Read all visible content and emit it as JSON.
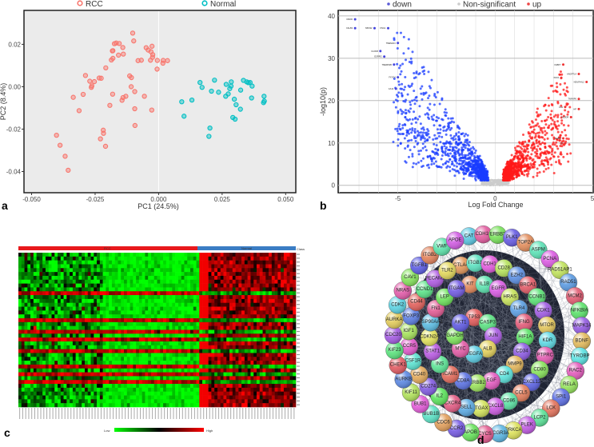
{
  "panel_labels": {
    "a": "a",
    "b": "b",
    "c": "c",
    "d": "d"
  },
  "colors": {
    "rcc": "#F8766D",
    "normal": "#00BFC4",
    "down": "#1a3cff",
    "up": "#ff1a1a",
    "ns": "#cccccc",
    "heat_low": "#00ff00",
    "heat_mid": "#000000",
    "heat_high": "#ff0000",
    "class_rcc": "#e8191c",
    "class_normal": "#3b7dc4"
  },
  "chart_data": [
    {
      "id": "pca",
      "type": "scatter",
      "title": "",
      "xlabel": "PC1 (24.5%)",
      "ylabel": "PC2 (8.4%)",
      "xlim": [
        -0.053,
        0.054
      ],
      "ylim": [
        -0.05,
        0.036
      ],
      "xticks": [
        "-0.050",
        "-0.025",
        "0.000",
        "0.025",
        "0.050"
      ],
      "xtick_values": [
        -0.05,
        -0.025,
        0,
        0.025,
        0.05
      ],
      "yticks": [
        "0.02",
        "0.00",
        "-0.02",
        "-0.04"
      ],
      "ytick_values": [
        0.02,
        0,
        -0.02,
        -0.04
      ],
      "legend_placement": "top",
      "series": [
        {
          "name": "RCC",
          "points": [
            [
              -0.0102,
              0.0253
            ],
            [
              -0.0098,
              0.0216
            ],
            [
              -0.0174,
              0.0203
            ],
            [
              -0.0167,
              0.0206
            ],
            [
              -0.0155,
              0.0204
            ],
            [
              -0.0141,
              0.0185
            ],
            [
              -0.0182,
              0.0169
            ],
            [
              -0.018,
              0.017
            ],
            [
              -0.0139,
              0.0154
            ],
            [
              -0.0158,
              0.0149
            ],
            [
              -0.018,
              0.0134
            ],
            [
              -0.0186,
              0.0126
            ],
            [
              -0.0208,
              0.0089
            ],
            [
              -0.0049,
              0.0184
            ],
            [
              -0.0041,
              0.0173
            ],
            [
              -0.0026,
              0.0191
            ],
            [
              -0.003,
              0.0165
            ],
            [
              -0.0023,
              0.0151
            ],
            [
              -0.0024,
              0.0139
            ],
            [
              -0.0032,
              0.0125
            ],
            [
              -0.0068,
              0.0125
            ],
            [
              -0.0081,
              0.0123
            ],
            [
              -0.0005,
              0.0124
            ],
            [
              0.0018,
              0.0124
            ],
            [
              0.0017,
              0.0111
            ],
            [
              0.0035,
              0.0123
            ],
            [
              -0.0006,
              0.0083
            ],
            [
              -0.0288,
              0.0053
            ],
            [
              -0.0271,
              0.0026
            ],
            [
              -0.0253,
              0.0024
            ],
            [
              -0.0234,
              0.0041
            ],
            [
              -0.0226,
              0.004
            ],
            [
              -0.0263,
              0.0004
            ],
            [
              -0.0265,
              -0.0003
            ],
            [
              -0.0114,
              0.0051
            ],
            [
              -0.0107,
              0.0043
            ],
            [
              -0.0108,
              0.0
            ],
            [
              -0.0094,
              -0.0023
            ],
            [
              -0.0297,
              -0.0036
            ],
            [
              -0.0336,
              -0.005
            ],
            [
              -0.0181,
              -0.0035
            ],
            [
              -0.0129,
              -0.0045
            ],
            [
              -0.014,
              -0.0051
            ],
            [
              -0.0144,
              -0.0064
            ],
            [
              -0.0056,
              -0.0045
            ],
            [
              -0.0313,
              -0.0113
            ],
            [
              -0.0192,
              -0.0088
            ],
            [
              -0.0094,
              -0.0104
            ],
            [
              -0.0027,
              -0.011
            ],
            [
              -0.0093,
              -0.0183
            ],
            [
              -0.0218,
              -0.0205
            ],
            [
              -0.0217,
              -0.022
            ],
            [
              -0.0229,
              -0.0246
            ],
            [
              -0.0209,
              -0.0281
            ],
            [
              -0.0402,
              -0.0229
            ],
            [
              -0.0388,
              -0.0276
            ],
            [
              -0.0368,
              -0.0328
            ],
            [
              -0.0356,
              -0.0394
            ]
          ]
        },
        {
          "name": "Normal",
          "points": [
            [
              0.0163,
              0.002
            ],
            [
              0.0171,
              -0.0003
            ],
            [
              0.022,
              0.0031
            ],
            [
              0.0208,
              -0.0021
            ],
            [
              0.0236,
              -0.0026
            ],
            [
              0.0266,
              0.0011
            ],
            [
              0.0286,
              0.0023
            ],
            [
              0.0285,
              0.0003
            ],
            [
              0.028,
              -0.0009
            ],
            [
              0.0274,
              -0.0034
            ],
            [
              0.0264,
              -0.0045
            ],
            [
              0.0298,
              -0.0059
            ],
            [
              0.0305,
              -0.0085
            ],
            [
              0.0323,
              -0.0016
            ],
            [
              0.0322,
              -0.0106
            ],
            [
              0.0334,
              0.003
            ],
            [
              0.0347,
              0.0023
            ],
            [
              0.0353,
              0.0019
            ],
            [
              0.036,
              0.002
            ],
            [
              0.0368,
              0.0003
            ],
            [
              0.0366,
              -0.0053
            ],
            [
              0.0415,
              -0.0045
            ],
            [
              0.0416,
              -0.0068
            ],
            [
              0.0413,
              -0.0075
            ],
            [
              0.0292,
              -0.0145
            ],
            [
              0.0301,
              -0.0153
            ],
            [
              0.0091,
              -0.0071
            ],
            [
              0.0131,
              -0.0063
            ],
            [
              0.01,
              -0.0139
            ],
            [
              0.0202,
              -0.0195
            ],
            [
              0.0198,
              -0.0234
            ]
          ]
        }
      ]
    },
    {
      "id": "volcano",
      "type": "scatter",
      "xlabel": "Log Fold Change",
      "ylabel": "-log10(p)",
      "xlim": [
        -8.07,
        5.04
      ],
      "ylim": [
        -1.75,
        41.3
      ],
      "xticks": [
        "-5",
        "0",
        "5"
      ],
      "xtick_values": [
        -5,
        0,
        5
      ],
      "yticks": [
        "0",
        "10",
        "20",
        "30",
        "40"
      ],
      "ytick_values": [
        0,
        10,
        20,
        30,
        40
      ],
      "legend_placement": "top",
      "legend": [
        "down",
        "Non-significant",
        "up"
      ],
      "generated_counts": {
        "down": 900,
        "up": 900,
        "ns": 200
      },
      "labeled_genes": [
        {
          "gene": "UMOD",
          "x": -7.2,
          "y": 39.2,
          "group": "down"
        },
        {
          "gene": "CALB1",
          "x": -7.2,
          "y": 37.1,
          "group": "down"
        },
        {
          "gene": "NPHS2",
          "x": -6.2,
          "y": 37.1,
          "group": "down"
        },
        {
          "gene": "KNG1",
          "x": -5.5,
          "y": 37.1,
          "group": "down"
        },
        {
          "gene": "TMEM213",
          "x": -5.0,
          "y": 33.6,
          "group": "down"
        },
        {
          "gene": "CLDN8",
          "x": -5.9,
          "y": 31.7,
          "group": "down"
        },
        {
          "gene": "ESRRG",
          "x": -5.7,
          "y": 30.4,
          "group": "down"
        },
        {
          "gene": "TMEM52B",
          "x": -5.2,
          "y": 28.5,
          "group": "down"
        },
        {
          "gene": "FXYD4",
          "x": -5.0,
          "y": 25.5,
          "group": "down"
        },
        {
          "gene": "CA12",
          "x": -5.1,
          "y": 22.8,
          "group": "down"
        },
        {
          "gene": "FABP7",
          "x": 3.5,
          "y": 28.5,
          "group": "up"
        },
        {
          "gene": "ANGPTL4",
          "x": 4.3,
          "y": 26.3,
          "group": "up"
        },
        {
          "gene": "PAX2",
          "x": 3.4,
          "y": 25.4,
          "group": "up"
        },
        {
          "gene": "NDUFA4L2",
          "x": 4.7,
          "y": 24.4,
          "group": "up"
        },
        {
          "gene": "TNFAIP6",
          "x": 4.3,
          "y": 20.4,
          "group": "up"
        },
        {
          "gene": "CA9",
          "x": 3.6,
          "y": 18.5,
          "group": "up"
        },
        {
          "gene": "HP",
          "x": 4.3,
          "y": 18.0,
          "group": "up"
        },
        {
          "gene": "PCDDR",
          "x": 3.9,
          "y": 16.1,
          "group": "up"
        },
        {
          "gene": "INHBA",
          "x": 3.5,
          "y": 11.1,
          "group": "up"
        },
        {
          "gene": "CP",
          "x": 3.6,
          "y": 9.9,
          "group": "up"
        }
      ]
    },
    {
      "id": "heatmap",
      "type": "heatmap",
      "class_label": "Class",
      "groups": [
        {
          "name": "RCC",
          "columns": 60
        },
        {
          "name": "Normal",
          "columns": 32
        }
      ],
      "rows": 40,
      "row_pattern_note": "d = lower in RCC / higher in Normal, u = higher in RCC / lower in Normal",
      "row_pattern": [
        "d",
        "d",
        "d",
        "d",
        "d",
        "d",
        "d",
        "d",
        "d",
        "d",
        "u",
        "d",
        "d",
        "d",
        "d",
        "d",
        "d",
        "u",
        "d",
        "d",
        "u",
        "d",
        "u",
        "d",
        "d",
        "u",
        "d",
        "d",
        "d",
        "u",
        "d",
        "u",
        "d",
        "u",
        "d",
        "d",
        "d",
        "d",
        "d",
        "d"
      ],
      "legend_low": "Low",
      "legend_high": "High"
    },
    {
      "id": "ppi-network",
      "type": "network",
      "rings": [
        [
          "TP53",
          "CASP3",
          "JUN",
          "ALB",
          "VEGFA",
          "MYC",
          "GAPDH",
          "AKT1"
        ],
        [
          "KIT",
          "IL1B",
          "EGFR",
          "HRAS",
          "TLR4",
          "IFNG",
          "HIF1A",
          "CD34",
          "MMP9",
          "CD4",
          "EGF",
          "ERBB2",
          "CD8A",
          "ICAM1",
          "INS",
          "STAT1",
          "CDKN2A",
          "HSP90AA1",
          "FN1",
          "LEP",
          "ITGAM"
        ],
        [
          "CTLA4",
          "ITGB1",
          "CDH1",
          "CD28",
          "EZH2",
          "BRCA1",
          "CCNB1",
          "CDK1",
          "MTOR",
          "KDR",
          "PTPRC",
          "CD80",
          "CXCL12",
          "CCL5",
          "CD86",
          "CXCL8",
          "ITGAX",
          "SELL",
          "CXCR4",
          "IL2",
          "CD274",
          "CD40",
          "CSF1R",
          "CCR5",
          "IGF1",
          "FOXP3",
          "CD44",
          "CCND1",
          "PECAM1",
          "TLR2"
        ],
        [
          "CAT",
          "CDH16",
          "ERBB3",
          "PLK1",
          "TOP2A",
          "ASPM",
          "PCNA",
          "RAD51AP1",
          "RAD51",
          "MCM2",
          "NFKBIA",
          "MAPK14",
          "BDNF",
          "TYROBP",
          "RAC2",
          "RELA",
          "SPI1",
          "LCK",
          "LCP2",
          "PLEK",
          "PRKCA",
          "FCGR3A",
          "CYCS",
          "APOB",
          "CCR2",
          "CDC6",
          "BUB1B",
          "BUB1",
          "KIF11",
          "AURKB",
          "CHEK1",
          "KIF23",
          "CDC20",
          "AURKA",
          "CDK2",
          "NRAS",
          "CAV1",
          "TGFB1",
          "ITGB2",
          "VWF",
          "APOE"
        ]
      ]
    }
  ]
}
